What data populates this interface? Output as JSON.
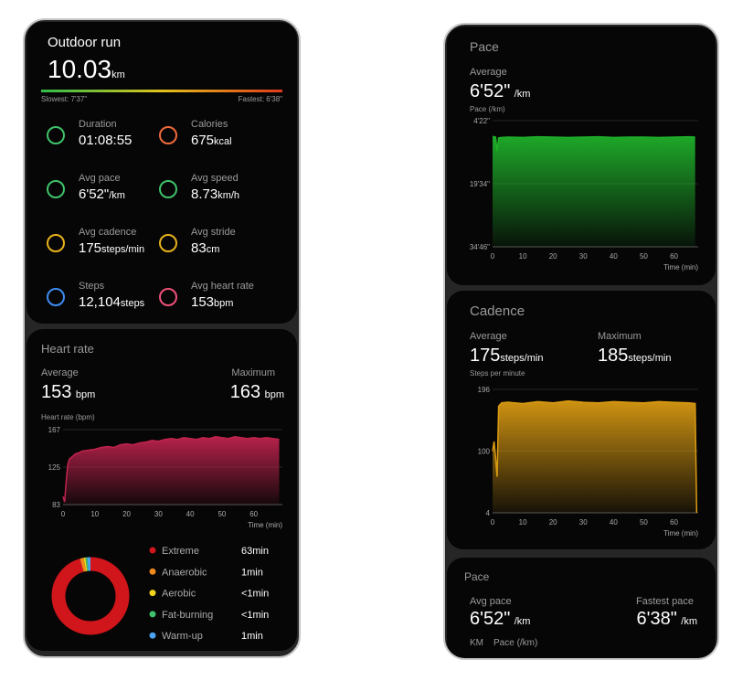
{
  "left_phone": {
    "summary": {
      "title": "Outdoor run",
      "distance": "10.03",
      "distance_unit": "km",
      "slowest": "Slowest: 7'37\"",
      "fastest": "Fastest: 6'38\"",
      "stats": [
        {
          "label": "Duration",
          "value": "01:08:55",
          "color": "#3fc26b"
        },
        {
          "label": "Calories",
          "value": "675",
          "unit": "kcal",
          "color": "#f06a3c"
        },
        {
          "label": "Avg pace",
          "value": "6'52\"",
          "unit": "/km",
          "color": "#3fc26b"
        },
        {
          "label": "Avg speed",
          "value": "8.73",
          "unit": "km/h",
          "color": "#3fc26b"
        },
        {
          "label": "Avg cadence",
          "value": "175",
          "unit": "steps/min",
          "color": "#e8b21c"
        },
        {
          "label": "Avg stride",
          "value": "83",
          "unit": "cm",
          "color": "#e8b21c"
        },
        {
          "label": "Steps",
          "value": "12,104",
          "unit": "steps",
          "color": "#3d8cf0"
        },
        {
          "label": "Avg heart rate",
          "value": "153",
          "unit": "bpm",
          "color": "#f0507a"
        }
      ]
    },
    "heart_rate": {
      "title": "Heart rate",
      "average_label": "Average",
      "average": "153",
      "average_unit": "bpm",
      "max_label": "Maximum",
      "max": "163",
      "max_unit": "bpm",
      "chart": {
        "type": "area",
        "y_label": "Heart rate (bpm)",
        "x_label": "Time (min)",
        "color": "#c0234e",
        "x": [
          0,
          0.5,
          1,
          1.5,
          2,
          3,
          4,
          5,
          6,
          8,
          10,
          12,
          14,
          16,
          18,
          20,
          22,
          24,
          26,
          28,
          30,
          32,
          34,
          36,
          38,
          40,
          42,
          44,
          46,
          48,
          50,
          52,
          54,
          56,
          58,
          60,
          62,
          64,
          66,
          68
        ],
        "values": [
          92,
          86,
          110,
          128,
          134,
          137,
          140,
          141,
          143,
          144,
          145,
          147,
          148,
          147,
          150,
          151,
          150,
          152,
          153,
          155,
          154,
          156,
          157,
          156,
          158,
          157,
          156,
          158,
          157,
          159,
          158,
          157,
          159,
          158,
          157,
          158,
          157,
          158,
          157,
          156
        ],
        "xlim": [
          0,
          69
        ],
        "ylim": [
          83,
          167
        ],
        "xticks": [
          0,
          10,
          20,
          30,
          40,
          50,
          60
        ],
        "yticks": [
          83,
          125,
          167
        ]
      },
      "zones": {
        "type": "pie",
        "names": [
          "Extreme",
          "Anaerobic",
          "Aerobic",
          "Fat-burning",
          "Warm-up"
        ],
        "values": [
          63,
          1,
          0.5,
          0.5,
          1
        ],
        "value_labels": [
          "63min",
          "1min",
          "<1min",
          "<1min",
          "1min"
        ],
        "colors": [
          "#d0151b",
          "#f08a1c",
          "#f2d21c",
          "#3fc26b",
          "#4aa3f0"
        ]
      }
    }
  },
  "right_phone": {
    "pace": {
      "title": "Pace",
      "average_label": "Average",
      "average": "6'52\"",
      "average_unit": "/km",
      "chart": {
        "type": "area",
        "y_label": "Pace (/km)",
        "x_label": "Time (min)",
        "color": "#1fb02a",
        "inverted": true,
        "x": [
          0,
          1,
          1.5,
          2,
          3,
          5,
          10,
          15,
          20,
          25,
          30,
          35,
          40,
          45,
          50,
          55,
          60,
          65,
          67
        ],
        "values": [
          490,
          500,
          700,
          510,
          505,
          500,
          505,
          495,
          500,
          505,
          500,
          495,
          505,
          500,
          500,
          505,
          500,
          495,
          500
        ],
        "xlim": [
          0,
          68
        ],
        "ylim": [
          262,
          2086
        ],
        "xticks": [
          0,
          10,
          20,
          30,
          40,
          50,
          60
        ],
        "yticks": [
          {
            "value": 262,
            "label": "4'22\""
          },
          {
            "value": 1174,
            "label": "19'34\""
          },
          {
            "value": 2086,
            "label": "34'46\""
          }
        ]
      }
    },
    "cadence": {
      "title": "Cadence",
      "average_label": "Average",
      "average": "175",
      "average_unit": "steps/min",
      "max_label": "Maximum",
      "max": "185",
      "max_unit": "steps/min",
      "chart": {
        "type": "area",
        "y_label": "Steps per minute",
        "x_label": "Time (min)",
        "color": "#d99a12",
        "x": [
          0,
          0.5,
          1,
          1.5,
          2,
          3,
          5,
          10,
          15,
          20,
          25,
          30,
          35,
          40,
          45,
          50,
          55,
          60,
          65,
          67,
          67.5
        ],
        "values": [
          100,
          115,
          90,
          60,
          170,
          175,
          176,
          174,
          177,
          175,
          178,
          176,
          175,
          177,
          176,
          175,
          177,
          176,
          175,
          174,
          4
        ],
        "xlim": [
          0,
          68
        ],
        "ylim": [
          4,
          196
        ],
        "xticks": [
          0,
          10,
          20,
          30,
          40,
          50,
          60
        ],
        "yticks": [
          4,
          100,
          196
        ]
      }
    },
    "pace_summary": {
      "title": "Pace",
      "avg_label": "Avg pace",
      "avg": "6'52\"",
      "avg_unit": "/km",
      "fastest_label": "Fastest pace",
      "fastest": "6'38\"",
      "fastest_unit": "/km",
      "col1": "KM",
      "col2": "Pace (/km)"
    }
  }
}
